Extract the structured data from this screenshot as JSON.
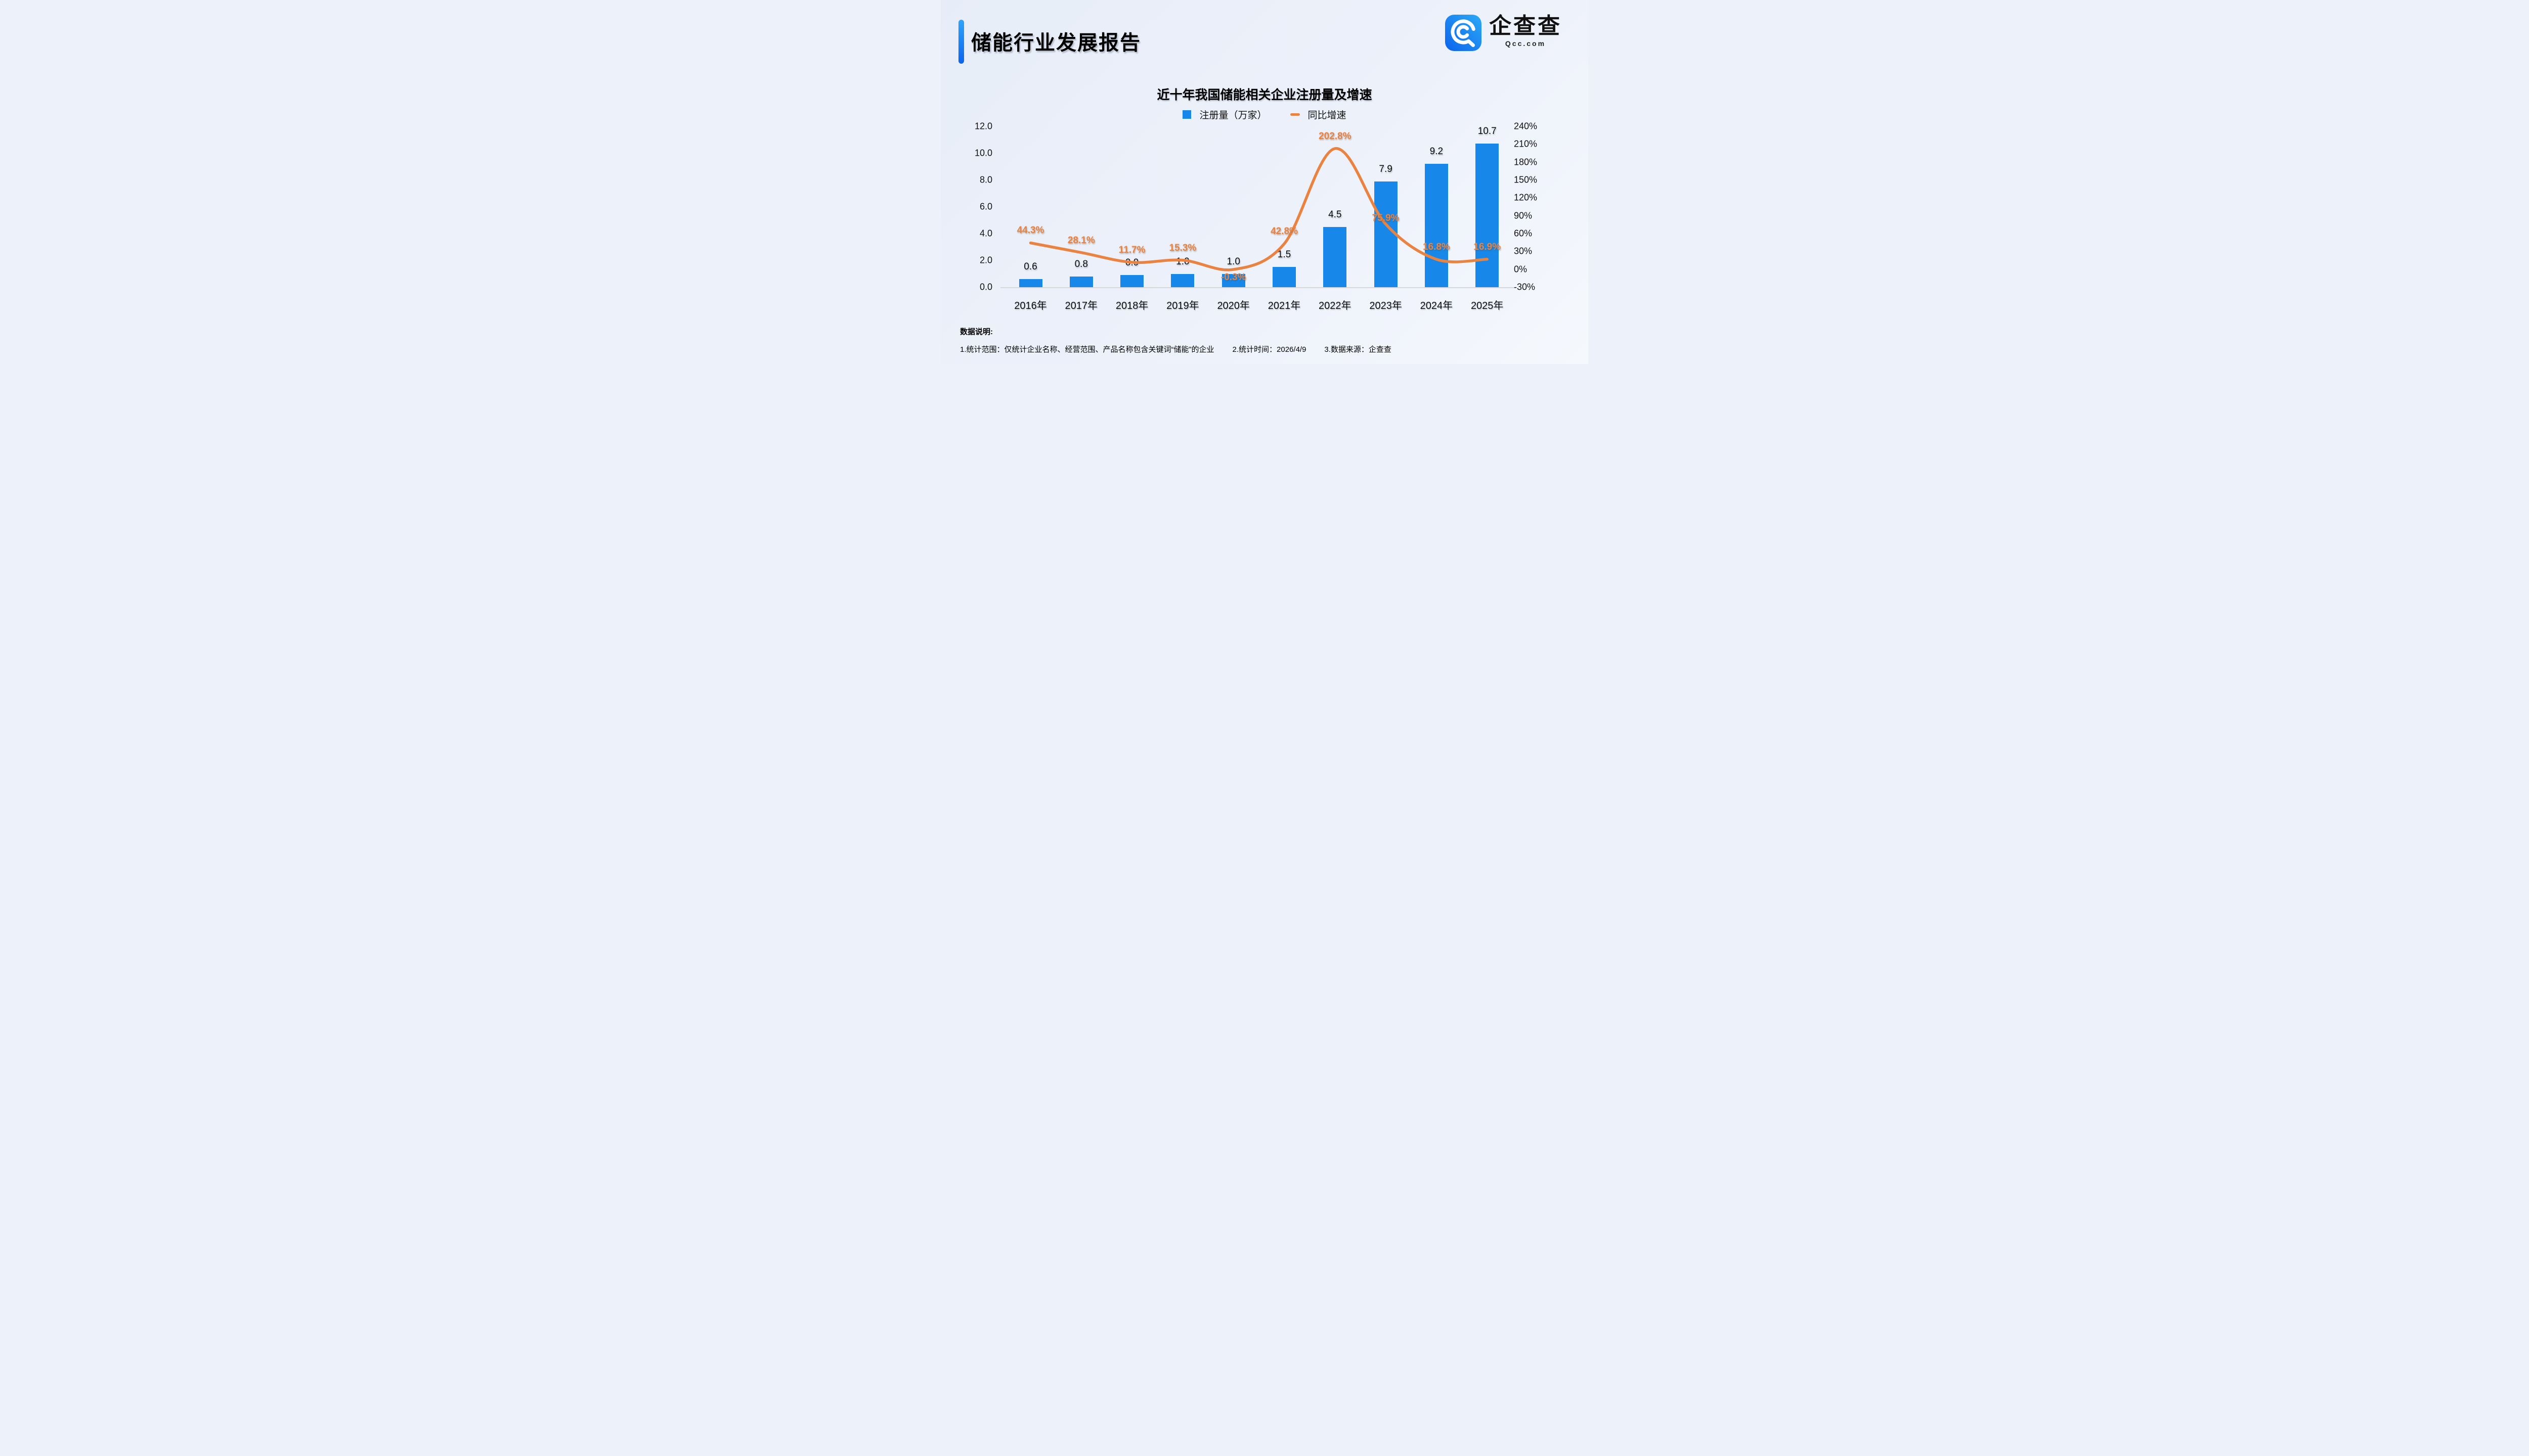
{
  "header": {
    "title": "储能行业发展报告",
    "logo": {
      "brand": "企查查",
      "domain": "Qcc.com",
      "icon": "qcc-magnifier-icon"
    }
  },
  "chart_data": {
    "type": "bar",
    "title": "近十年我国储能相关企业注册量及增速",
    "categories": [
      "2016年",
      "2017年",
      "2018年",
      "2019年",
      "2020年",
      "2021年",
      "2022年",
      "2023年",
      "2024年",
      "2025年"
    ],
    "series": [
      {
        "name": "注册量（万家）",
        "type": "bar",
        "values": [
          0.6,
          0.8,
          0.9,
          1.0,
          1.0,
          1.5,
          4.5,
          7.9,
          9.2,
          10.7
        ],
        "labels": [
          "0.6",
          "0.8",
          "0.9",
          "1.0",
          "1.0",
          "1.5",
          "4.5",
          "7.9",
          "9.2",
          "10.7"
        ]
      },
      {
        "name": "同比增速",
        "type": "line",
        "values": [
          44.3,
          28.1,
          11.7,
          15.3,
          -0.3,
          42.8,
          202.8,
          75.9,
          16.8,
          16.9
        ],
        "labels": [
          "44.3%",
          "28.1%",
          "11.7%",
          "15.3%",
          "-0.3%",
          "42.8%",
          "202.8%",
          "75.9%",
          "16.8%",
          "16.9%"
        ]
      }
    ],
    "legend": [
      "注册量（万家）",
      "同比增速"
    ],
    "legend_position": "top",
    "grid": false,
    "left_axis": {
      "label": "注册量（万家）",
      "min": 0,
      "max": 12,
      "ticks": [
        "0.0",
        "2.0",
        "4.0",
        "6.0",
        "8.0",
        "10.0",
        "12.0"
      ]
    },
    "right_axis": {
      "label": "同比增速",
      "min": -30,
      "max": 240,
      "ticks": [
        "-30%",
        "0%",
        "30%",
        "60%",
        "90%",
        "120%",
        "150%",
        "180%",
        "210%",
        "240%"
      ]
    },
    "colors": {
      "bar": "#1788E9",
      "line": "#EA8240",
      "accent_blue": "#1677F2",
      "text": "#0A0A0A"
    }
  },
  "footnote": {
    "heading": "数据说明:",
    "items": [
      "1.统计范围：仅统计企业名称、经营范围、产品名称包含关键词“储能”的企业",
      "2.统计时间：2026/4/9",
      "3.数据来源：企查查"
    ]
  }
}
